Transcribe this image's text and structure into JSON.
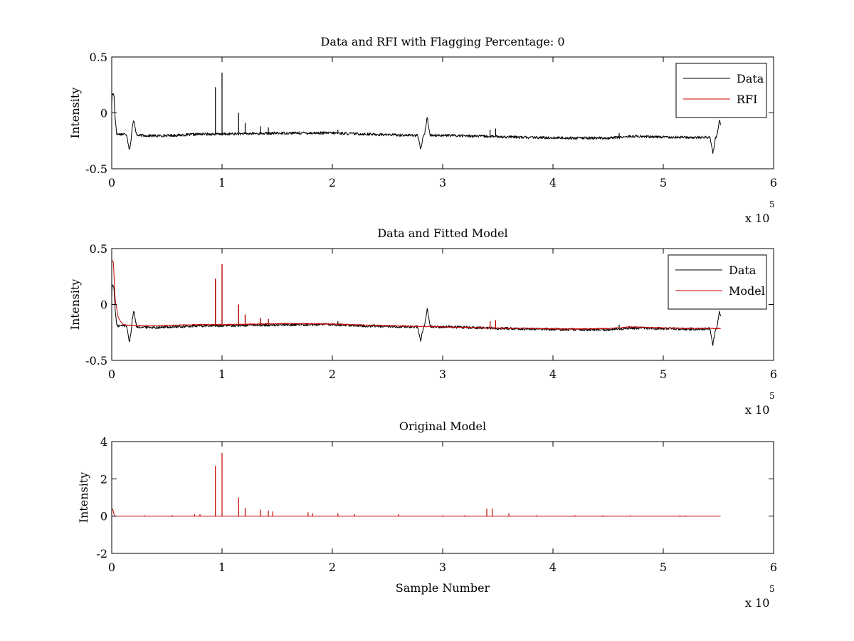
{
  "chart_data": [
    {
      "type": "line",
      "title": "Data and RFI with Flagging Percentage: 0",
      "xlabel": "",
      "ylabel": "Intensity",
      "xlim": [
        0,
        600000
      ],
      "ylim": [
        -0.5,
        0.5
      ],
      "xticks": [
        0,
        100000,
        200000,
        300000,
        400000,
        500000,
        600000
      ],
      "xtick_labels": [
        "0",
        "1",
        "2",
        "3",
        "4",
        "5",
        "6"
      ],
      "yticks": [
        -0.5,
        0,
        0.5
      ],
      "ytick_labels": [
        "-0.5",
        "0",
        "0.5"
      ],
      "x_multiplier": {
        "base": "x 10",
        "exponent": "5"
      },
      "grid": false,
      "legend_position": "top-right",
      "series": [
        {
          "name": "Data",
          "color": "#000000",
          "baseline": [
            [
              0,
              -0.17
            ],
            [
              3000,
              -0.19
            ],
            [
              15000,
              -0.19
            ],
            [
              20000,
              -0.2
            ],
            [
              40000,
              -0.205
            ],
            [
              60000,
              -0.2
            ],
            [
              80000,
              -0.19
            ],
            [
              100000,
              -0.19
            ],
            [
              130000,
              -0.185
            ],
            [
              160000,
              -0.18
            ],
            [
              200000,
              -0.18
            ],
            [
              230000,
              -0.19
            ],
            [
              270000,
              -0.2
            ],
            [
              300000,
              -0.2
            ],
            [
              340000,
              -0.21
            ],
            [
              380000,
              -0.22
            ],
            [
              420000,
              -0.225
            ],
            [
              450000,
              -0.225
            ],
            [
              470000,
              -0.21
            ],
            [
              500000,
              -0.215
            ],
            [
              530000,
              -0.22
            ],
            [
              552000,
              -0.215
            ]
          ],
          "excursions": [
            [
              500,
              0.07
            ],
            [
              2000,
              0.06
            ],
            [
              16000,
              -0.33
            ],
            [
              20000,
              -0.06
            ],
            [
              280000,
              -0.33
            ],
            [
              286000,
              -0.04
            ],
            [
              545000,
              -0.36
            ],
            [
              551000,
              -0.06
            ]
          ],
          "spikes": [
            [
              94000,
              0.23
            ],
            [
              100000,
              0.36
            ],
            [
              115000,
              0.0
            ],
            [
              121000,
              -0.09
            ],
            [
              135000,
              -0.12
            ],
            [
              142000,
              -0.13
            ],
            [
              205000,
              -0.15
            ],
            [
              343000,
              -0.15
            ],
            [
              348000,
              -0.14
            ],
            [
              460000,
              -0.18
            ]
          ],
          "noise": 0.012
        },
        {
          "name": "RFI",
          "color": "#cc0000",
          "points": []
        }
      ]
    },
    {
      "type": "line",
      "title": "Data and Fitted Model",
      "xlabel": "",
      "ylabel": "Intensity",
      "xlim": [
        0,
        600000
      ],
      "ylim": [
        -0.5,
        0.5
      ],
      "xticks": [
        0,
        100000,
        200000,
        300000,
        400000,
        500000,
        600000
      ],
      "xtick_labels": [
        "0",
        "1",
        "2",
        "3",
        "4",
        "5",
        "6"
      ],
      "yticks": [
        -0.5,
        0,
        0.5
      ],
      "ytick_labels": [
        "-0.5",
        "0",
        "0.5"
      ],
      "x_multiplier": {
        "base": "x 10",
        "exponent": "5"
      },
      "grid": false,
      "legend_position": "top-right",
      "series": [
        {
          "name": "Data",
          "color": "#000000",
          "baseline": [
            [
              0,
              -0.17
            ],
            [
              3000,
              -0.19
            ],
            [
              15000,
              -0.19
            ],
            [
              20000,
              -0.2
            ],
            [
              40000,
              -0.205
            ],
            [
              60000,
              -0.2
            ],
            [
              80000,
              -0.19
            ],
            [
              100000,
              -0.19
            ],
            [
              130000,
              -0.185
            ],
            [
              160000,
              -0.18
            ],
            [
              200000,
              -0.18
            ],
            [
              230000,
              -0.19
            ],
            [
              270000,
              -0.2
            ],
            [
              300000,
              -0.2
            ],
            [
              340000,
              -0.21
            ],
            [
              380000,
              -0.22
            ],
            [
              420000,
              -0.225
            ],
            [
              450000,
              -0.225
            ],
            [
              470000,
              -0.21
            ],
            [
              500000,
              -0.215
            ],
            [
              530000,
              -0.22
            ],
            [
              552000,
              -0.215
            ]
          ],
          "excursions": [
            [
              500,
              0.07
            ],
            [
              2000,
              0.06
            ],
            [
              16000,
              -0.33
            ],
            [
              20000,
              -0.06
            ],
            [
              280000,
              -0.33
            ],
            [
              286000,
              -0.04
            ],
            [
              545000,
              -0.36
            ],
            [
              551000,
              -0.06
            ]
          ],
          "spikes": [
            [
              94000,
              0.23
            ],
            [
              100000,
              0.36
            ],
            [
              115000,
              0.0
            ],
            [
              121000,
              -0.09
            ],
            [
              135000,
              -0.12
            ],
            [
              142000,
              -0.13
            ],
            [
              205000,
              -0.15
            ],
            [
              343000,
              -0.15
            ],
            [
              348000,
              -0.14
            ],
            [
              460000,
              -0.18
            ]
          ],
          "noise": 0.012
        },
        {
          "name": "Model",
          "color": "#cc0000",
          "baseline": [
            [
              0,
              0.4
            ],
            [
              1500,
              0.38
            ],
            [
              3000,
              0.05
            ],
            [
              6000,
              -0.12
            ],
            [
              10000,
              -0.18
            ],
            [
              20000,
              -0.19
            ],
            [
              40000,
              -0.19
            ],
            [
              60000,
              -0.185
            ],
            [
              80000,
              -0.18
            ],
            [
              100000,
              -0.18
            ],
            [
              130000,
              -0.175
            ],
            [
              160000,
              -0.17
            ],
            [
              200000,
              -0.175
            ],
            [
              230000,
              -0.185
            ],
            [
              270000,
              -0.195
            ],
            [
              300000,
              -0.2
            ],
            [
              340000,
              -0.21
            ],
            [
              380000,
              -0.215
            ],
            [
              420000,
              -0.22
            ],
            [
              450000,
              -0.215
            ],
            [
              470000,
              -0.2
            ],
            [
              500000,
              -0.21
            ],
            [
              530000,
              -0.215
            ],
            [
              552000,
              -0.215
            ]
          ],
          "spikes": [
            [
              94000,
              0.23
            ],
            [
              100000,
              0.36
            ],
            [
              115000,
              0.0
            ],
            [
              121000,
              -0.09
            ],
            [
              135000,
              -0.12
            ],
            [
              142000,
              -0.13
            ],
            [
              343000,
              -0.15
            ],
            [
              348000,
              -0.14
            ]
          ],
          "noise": 0.004
        }
      ]
    },
    {
      "type": "line",
      "title": "Original Model",
      "xlabel": "Sample Number",
      "ylabel": "Intensity",
      "xlim": [
        0,
        600000
      ],
      "ylim": [
        -2,
        4
      ],
      "xticks": [
        0,
        100000,
        200000,
        300000,
        400000,
        500000,
        600000
      ],
      "xtick_labels": [
        "0",
        "1",
        "2",
        "3",
        "4",
        "5",
        "6"
      ],
      "yticks": [
        -2,
        0,
        2,
        4
      ],
      "ytick_labels": [
        "-2",
        "0",
        "2",
        "4"
      ],
      "x_multiplier": {
        "base": "x 10",
        "exponent": "5"
      },
      "grid": false,
      "series": [
        {
          "name": "Original Model",
          "color": "#cc0000",
          "baseline": [
            [
              0,
              0.4
            ],
            [
              1000,
              0.35
            ],
            [
              2500,
              0.0
            ],
            [
              552000,
              0.0
            ]
          ],
          "spikes": [
            [
              94000,
              2.7
            ],
            [
              100000,
              3.4
            ],
            [
              115000,
              1.0
            ],
            [
              121000,
              0.45
            ],
            [
              135000,
              0.35
            ],
            [
              142000,
              0.3
            ],
            [
              146000,
              0.25
            ],
            [
              178000,
              0.2
            ],
            [
              182000,
              0.15
            ],
            [
              205000,
              0.15
            ],
            [
              220000,
              0.1
            ],
            [
              260000,
              0.1
            ],
            [
              340000,
              0.4
            ],
            [
              345000,
              0.4
            ],
            [
              360000,
              0.15
            ],
            [
              30000,
              0.05
            ],
            [
              55000,
              0.05
            ],
            [
              75000,
              0.1
            ],
            [
              80000,
              0.1
            ],
            [
              300000,
              0.05
            ],
            [
              320000,
              0.05
            ],
            [
              385000,
              0.05
            ],
            [
              420000,
              0.05
            ],
            [
              445000,
              0.05
            ],
            [
              470000,
              0.05
            ],
            [
              515000,
              0.05
            ],
            [
              520000,
              0.05
            ]
          ],
          "noise": 0
        }
      ]
    }
  ]
}
